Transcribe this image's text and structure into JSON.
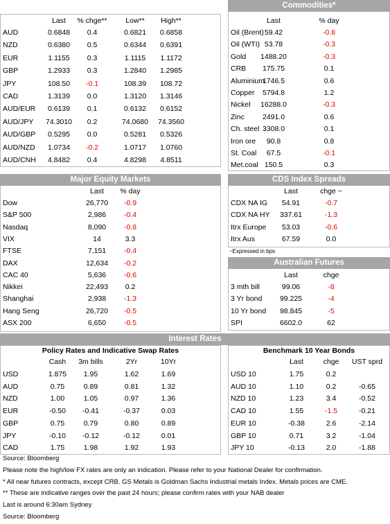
{
  "fx": {
    "columns": [
      "Last",
      "% chge**",
      "Low**",
      "High**"
    ],
    "rows": [
      [
        "AUD",
        "0.6848",
        "0.4",
        "0.6821",
        "0.6858"
      ],
      [
        "NZD",
        "0.6380",
        "0.5",
        "0.6344",
        "0.6391"
      ],
      [
        "EUR",
        "1.1155",
        "0.3",
        "1.1115",
        "1.1172"
      ],
      [
        "GBP",
        "1.2933",
        "0.3",
        "1.2840",
        "1.2985"
      ],
      [
        "JPY",
        "108.50",
        "-0.1",
        "108.39",
        "108.72"
      ],
      [
        "CAD",
        "1.3139",
        "0.0",
        "1.3120",
        "1.3146"
      ],
      [
        "AUD/EUR",
        "0.6139",
        "0.1",
        "0.6132",
        "0.6152"
      ],
      [
        "AUD/JPY",
        "74.3010",
        "0.2",
        "74.0680",
        "74.3560"
      ],
      [
        "AUD/GBP",
        "0.5295",
        "0.0",
        "0.5281",
        "0.5326"
      ],
      [
        "AUD/NZD",
        "1.0734",
        "-0.2",
        "1.0717",
        "1.0760"
      ],
      [
        "AUD/CNH",
        "4.8482",
        "0.4",
        "4.8298",
        "4.8511"
      ]
    ]
  },
  "commodities": {
    "title": "Commodities*",
    "columns": [
      "Last",
      "% day"
    ],
    "rows": [
      [
        "Oil (Brent)",
        "59.42",
        "-0.8"
      ],
      [
        "Oil (WTI)",
        "53.78",
        "-0.3"
      ],
      [
        "Gold",
        "1488.20",
        "-0.3"
      ],
      [
        "CRB",
        "175.75",
        "0.1"
      ],
      [
        "Aluminium",
        "1746.5",
        "0.6"
      ],
      [
        "Copper",
        "5794.8",
        "1.2"
      ],
      [
        "Nickel",
        "16288.0",
        "-0.3"
      ],
      [
        "Zinc",
        "2491.0",
        "0.6"
      ],
      [
        "Ch. steel",
        "3308.0",
        "0.1"
      ],
      [
        "Iron ore",
        "90.8",
        "0.8"
      ],
      [
        "St. Coal",
        "67.5",
        "-0.1"
      ],
      [
        "Met.coal",
        "150.5",
        "0.3"
      ]
    ]
  },
  "equities": {
    "title": "Major Equity Markets",
    "columns": [
      "Last",
      "% day"
    ],
    "rows": [
      [
        "Dow",
        "26,770",
        "-0.9"
      ],
      [
        "S&P 500",
        "2,986",
        "-0.4"
      ],
      [
        "Nasdaq",
        "8,090",
        "-0.8"
      ],
      [
        "VIX",
        "14",
        "3.3"
      ],
      [
        "FTSE",
        "7,151",
        "-0.4"
      ],
      [
        "DAX",
        "12,634",
        "-0.2"
      ],
      [
        "CAC 40",
        "5,636",
        "-0.6"
      ],
      [
        "Nikkei",
        "22,493",
        "0.2"
      ],
      [
        "Shanghai",
        "2,938",
        "-1.3"
      ],
      [
        "Hang Seng",
        "26,720",
        "-0.5"
      ],
      [
        "ASX 200",
        "6,650",
        "-0.5"
      ]
    ]
  },
  "cds": {
    "title": "CDS Index Spreads",
    "columns": [
      "Last",
      "chge ~"
    ],
    "rows": [
      [
        "CDX NA IG",
        "54.91",
        "-0.7"
      ],
      [
        "CDX NA HY",
        "337.61",
        "-1.3"
      ],
      [
        "Itrx Europe",
        "53.03",
        "-0.6"
      ],
      [
        "Itrx Aus",
        "67.59",
        "0.0"
      ]
    ],
    "note": "~Expressed in bps"
  },
  "futures": {
    "title": "Australian Futures",
    "columns": [
      "Last",
      "chge"
    ],
    "rows": [
      [
        "3 mth bill",
        "99.06",
        "-8"
      ],
      [
        "3 Yr bond",
        "99.225",
        "-4"
      ],
      [
        "10 Yr bond",
        "98.845",
        "-5"
      ],
      [
        "SPI",
        "6602.0",
        "62"
      ]
    ]
  },
  "interest_rates": {
    "title": "Interest Rates",
    "policy": {
      "title": "Policy Rates and Indicative Swap Rates",
      "columns": [
        "Cash",
        "3m bills",
        "2Yr",
        "10Yr"
      ],
      "rows": [
        [
          "USD",
          "1.875",
          "1.95",
          "1.62",
          "1.69"
        ],
        [
          "AUD",
          "0.75",
          "0.89",
          "0.81",
          "1.32"
        ],
        [
          "NZD",
          "1.00",
          "1.05",
          "0.97",
          "1.36"
        ],
        [
          "EUR",
          "-0.50",
          "-0.41",
          "-0.37",
          "0.03"
        ],
        [
          "GBP",
          "0.75",
          "0.79",
          "0.80",
          "0.89"
        ],
        [
          "JPY",
          "-0.10",
          "-0.12",
          "-0.12",
          "0.01"
        ],
        [
          "CAD",
          "1.75",
          "1.98",
          "1.92",
          "1.93"
        ]
      ]
    },
    "bonds": {
      "title": "Benchmark 10 Year Bonds",
      "columns": [
        "Last",
        "chge",
        "UST sprd"
      ],
      "rows": [
        [
          "USD 10",
          "1.75",
          "0.2"
        ],
        [
          "AUD 10",
          "1.10",
          "0.2",
          "-0.65"
        ],
        [
          "NZD 10",
          "1.23",
          "3.4",
          "-0.52"
        ],
        [
          "CAD 10",
          "1.55",
          "-1.5",
          "-0.21"
        ],
        [
          "EUR 10",
          "-0.38",
          "2.6",
          "-2.14"
        ],
        [
          "GBP 10",
          "0.71",
          "3.2",
          "-1.04"
        ],
        [
          "JPY 10",
          "-0.13",
          "2.0",
          "-1.88"
        ]
      ]
    }
  },
  "footnotes": [
    "Source: Bloomberg",
    "Please note the high/low FX rates are only an indication. Please refer to your National Dealer for confirmation.",
    "* All near futures contracts, except CRB. GS Metals is Goldman Sachs Industrial metals Index. Metals prices are CME.",
    "** These are indicative ranges over the past 24 hours; please confirm rates with your NAB dealer",
    "Last is around 6:30am Sydney",
    "Source: Bloomberg"
  ]
}
